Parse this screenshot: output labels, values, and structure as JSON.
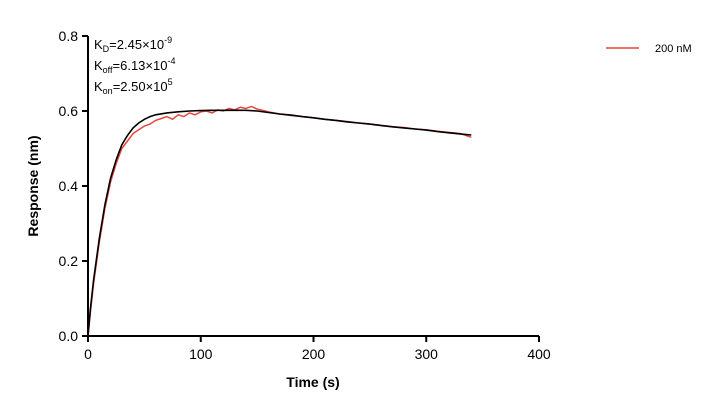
{
  "chart_data": {
    "type": "line",
    "xlabel": "Time (s)",
    "ylabel": "Response (nm)",
    "xlim": [
      0,
      400
    ],
    "ylim": [
      0,
      0.8
    ],
    "x_ticks": [
      "0",
      "100",
      "200",
      "300",
      "400"
    ],
    "y_ticks": [
      "0.0",
      "0.2",
      "0.4",
      "0.6",
      "0.8"
    ],
    "x_tick_values": [
      0,
      100,
      200,
      300,
      400
    ],
    "y_tick_values": [
      0,
      0.2,
      0.4,
      0.6,
      0.8
    ],
    "grid": false,
    "legend_position": "top-right",
    "annotations": {
      "kd": {
        "base": "K",
        "sub": "D",
        "value": "=2.45×10",
        "exp": "-9"
      },
      "koff": {
        "base": "K",
        "sub": "off",
        "value": "=6.13×10",
        "exp": "-4"
      },
      "kon": {
        "base": "K",
        "sub": "on",
        "value": "=2.50×10",
        "exp": "5"
      }
    },
    "series": [
      {
        "name": "200 nM",
        "color": "#e8453c",
        "x": [
          0,
          2,
          5,
          10,
          15,
          20,
          25,
          30,
          35,
          40,
          45,
          50,
          55,
          60,
          65,
          70,
          75,
          80,
          85,
          90,
          95,
          100,
          105,
          110,
          115,
          120,
          125,
          130,
          135,
          140,
          145,
          150,
          155,
          160,
          170,
          180,
          190,
          200,
          210,
          220,
          230,
          240,
          250,
          260,
          270,
          280,
          290,
          300,
          310,
          320,
          330,
          340
        ],
        "values": [
          0.0,
          0.06,
          0.14,
          0.25,
          0.34,
          0.41,
          0.46,
          0.5,
          0.52,
          0.54,
          0.55,
          0.56,
          0.565,
          0.575,
          0.58,
          0.585,
          0.578,
          0.59,
          0.585,
          0.595,
          0.59,
          0.598,
          0.6,
          0.595,
          0.603,
          0.6,
          0.607,
          0.603,
          0.61,
          0.607,
          0.612,
          0.605,
          0.602,
          0.598,
          0.592,
          0.588,
          0.585,
          0.582,
          0.578,
          0.575,
          0.572,
          0.568,
          0.565,
          0.562,
          0.558,
          0.556,
          0.552,
          0.55,
          0.546,
          0.543,
          0.54,
          0.53
        ]
      }
    ],
    "fit_curve": {
      "color": "#000000",
      "x": [
        0,
        2,
        5,
        10,
        15,
        20,
        25,
        30,
        35,
        40,
        45,
        50,
        55,
        60,
        70,
        80,
        90,
        100,
        110,
        120,
        130,
        140,
        150,
        160,
        170,
        180,
        190,
        200,
        210,
        220,
        230,
        240,
        250,
        260,
        270,
        280,
        290,
        300,
        310,
        320,
        330,
        340
      ],
      "values": [
        0.0,
        0.07,
        0.15,
        0.26,
        0.35,
        0.42,
        0.47,
        0.51,
        0.535,
        0.555,
        0.568,
        0.578,
        0.585,
        0.59,
        0.595,
        0.598,
        0.6,
        0.601,
        0.602,
        0.602,
        0.602,
        0.602,
        0.6,
        0.596,
        0.592,
        0.589,
        0.585,
        0.582,
        0.578,
        0.575,
        0.571,
        0.568,
        0.565,
        0.561,
        0.558,
        0.555,
        0.552,
        0.549,
        0.545,
        0.542,
        0.539,
        0.536
      ]
    }
  }
}
